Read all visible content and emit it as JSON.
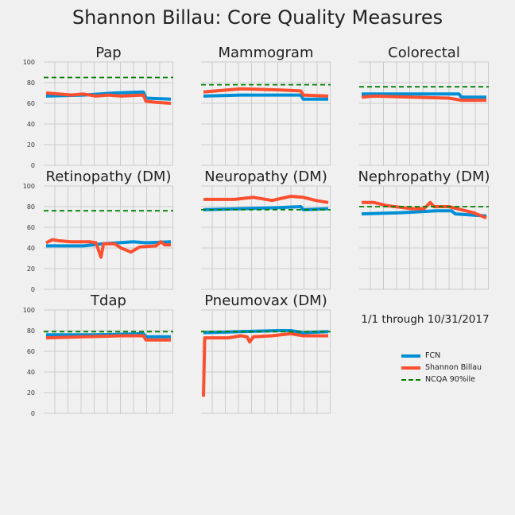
{
  "title": "Shannon Billau: Core Quality Measures",
  "note": "1/1 through 10/31/2017",
  "colors": {
    "fcn": "#008fd5",
    "provider": "#fc4f30",
    "benchmark": "#008000"
  },
  "legend": [
    {
      "label": "FCN",
      "color": "#008fd5",
      "style": "solid"
    },
    {
      "label": "Shannon Billau",
      "color": "#fc4f30",
      "style": "solid"
    },
    {
      "label": "NCQA 90%ile",
      "color": "#008000",
      "style": "dashed"
    }
  ],
  "chart_data": [
    {
      "type": "line",
      "title": "Pap",
      "ylim": [
        0,
        100
      ],
      "yticks": [
        "0",
        "20",
        "40",
        "60",
        "80",
        "100"
      ],
      "grid": true,
      "benchmark": 85,
      "series": [
        {
          "name": "FCN",
          "values": [
            [
              0,
              67
            ],
            [
              0.3,
              68
            ],
            [
              0.55,
              70
            ],
            [
              0.78,
              71
            ],
            [
              0.8,
              65
            ],
            [
              1,
              64
            ]
          ]
        },
        {
          "name": "Shannon Billau",
          "values": [
            [
              0,
              70
            ],
            [
              0.1,
              69
            ],
            [
              0.2,
              68
            ],
            [
              0.3,
              69
            ],
            [
              0.4,
              67
            ],
            [
              0.5,
              68
            ],
            [
              0.6,
              67
            ],
            [
              0.78,
              68
            ],
            [
              0.8,
              62
            ],
            [
              0.88,
              61
            ],
            [
              1,
              60
            ]
          ]
        }
      ]
    },
    {
      "type": "line",
      "title": "Mammogram",
      "ylim": [
        0,
        100
      ],
      "yticks": [],
      "grid": true,
      "benchmark": 78,
      "series": [
        {
          "name": "FCN",
          "values": [
            [
              0,
              67
            ],
            [
              0.3,
              68
            ],
            [
              0.78,
              68
            ],
            [
              0.8,
              64
            ],
            [
              1,
              64
            ]
          ]
        },
        {
          "name": "Shannon Billau",
          "values": [
            [
              0,
              71
            ],
            [
              0.1,
              72
            ],
            [
              0.3,
              74
            ],
            [
              0.6,
              73
            ],
            [
              0.78,
              72
            ],
            [
              0.8,
              68
            ],
            [
              1,
              67
            ]
          ]
        }
      ]
    },
    {
      "type": "line",
      "title": "Colorectal",
      "ylim": [
        0,
        100
      ],
      "yticks": [],
      "grid": true,
      "benchmark": 76,
      "series": [
        {
          "name": "FCN",
          "values": [
            [
              0,
              69
            ],
            [
              0.5,
              69
            ],
            [
              0.78,
              69
            ],
            [
              0.8,
              66
            ],
            [
              1,
              66
            ]
          ]
        },
        {
          "name": "Shannon Billau",
          "values": [
            [
              0,
              66
            ],
            [
              0.1,
              67
            ],
            [
              0.4,
              66
            ],
            [
              0.7,
              65
            ],
            [
              0.8,
              63
            ],
            [
              1,
              63
            ]
          ]
        }
      ]
    },
    {
      "type": "line",
      "title": "Retinopathy (DM)",
      "ylim": [
        0,
        100
      ],
      "yticks": [
        "0",
        "20",
        "40",
        "60",
        "80",
        "100"
      ],
      "grid": true,
      "benchmark": 76,
      "series": [
        {
          "name": "FCN",
          "values": [
            [
              0,
              42
            ],
            [
              0.3,
              42
            ],
            [
              0.45,
              44
            ],
            [
              0.7,
              46
            ],
            [
              0.8,
              45
            ],
            [
              1,
              46
            ]
          ]
        },
        {
          "name": "Shannon Billau",
          "values": [
            [
              0,
              45
            ],
            [
              0.05,
              48
            ],
            [
              0.1,
              47
            ],
            [
              0.2,
              46
            ],
            [
              0.35,
              46
            ],
            [
              0.4,
              45
            ],
            [
              0.42,
              38
            ],
            [
              0.44,
              31
            ],
            [
              0.46,
              44
            ],
            [
              0.55,
              44
            ],
            [
              0.6,
              40
            ],
            [
              0.68,
              36
            ],
            [
              0.75,
              41
            ],
            [
              0.88,
              42
            ],
            [
              0.92,
              46
            ],
            [
              0.95,
              43
            ],
            [
              1,
              43
            ]
          ]
        }
      ]
    },
    {
      "type": "line",
      "title": "Neuropathy (DM)",
      "ylim": [
        0,
        100
      ],
      "yticks": [],
      "grid": true,
      "benchmark": 77,
      "series": [
        {
          "name": "FCN",
          "values": [
            [
              0,
              77
            ],
            [
              0.3,
              78
            ],
            [
              0.6,
              79
            ],
            [
              0.78,
              80
            ],
            [
              0.8,
              77
            ],
            [
              1,
              78
            ]
          ]
        },
        {
          "name": "Shannon Billau",
          "values": [
            [
              0,
              87
            ],
            [
              0.25,
              87
            ],
            [
              0.4,
              89
            ],
            [
              0.55,
              86
            ],
            [
              0.7,
              90
            ],
            [
              0.8,
              89
            ],
            [
              0.9,
              86
            ],
            [
              1,
              84
            ]
          ]
        }
      ]
    },
    {
      "type": "line",
      "title": "Nephropathy (DM)",
      "ylim": [
        0,
        100
      ],
      "yticks": [],
      "grid": true,
      "benchmark": 80,
      "series": [
        {
          "name": "FCN",
          "values": [
            [
              0,
              73
            ],
            [
              0.3,
              74
            ],
            [
              0.6,
              76
            ],
            [
              0.72,
              76
            ],
            [
              0.75,
              73
            ],
            [
              1,
              71
            ]
          ]
        },
        {
          "name": "Shannon Billau",
          "values": [
            [
              0,
              84
            ],
            [
              0.1,
              84
            ],
            [
              0.2,
              81
            ],
            [
              0.4,
              78
            ],
            [
              0.5,
              78
            ],
            [
              0.55,
              84
            ],
            [
              0.58,
              80
            ],
            [
              0.7,
              80
            ],
            [
              0.8,
              77
            ],
            [
              0.9,
              74
            ],
            [
              1,
              69
            ]
          ]
        }
      ]
    },
    {
      "type": "line",
      "title": "Tdap",
      "ylim": [
        0,
        100
      ],
      "yticks": [
        "0",
        "20",
        "40",
        "60",
        "80",
        "100"
      ],
      "grid": true,
      "benchmark": 79,
      "series": [
        {
          "name": "FCN",
          "values": [
            [
              0,
              76
            ],
            [
              0.4,
              76
            ],
            [
              0.78,
              77
            ],
            [
              0.8,
              74
            ],
            [
              1,
              74
            ]
          ]
        },
        {
          "name": "Shannon Billau",
          "values": [
            [
              0,
              73
            ],
            [
              0.3,
              74
            ],
            [
              0.6,
              75
            ],
            [
              0.78,
              75
            ],
            [
              0.8,
              71
            ],
            [
              1,
              71
            ]
          ]
        }
      ]
    },
    {
      "type": "line",
      "title": "Pneumovax (DM)",
      "ylim": [
        0,
        100
      ],
      "yticks": [],
      "grid": true,
      "benchmark": 79,
      "series": [
        {
          "name": "FCN",
          "values": [
            [
              0,
              78
            ],
            [
              0.3,
              79
            ],
            [
              0.6,
              80
            ],
            [
              0.7,
              80
            ],
            [
              0.8,
              78
            ],
            [
              1,
              79
            ]
          ]
        },
        {
          "name": "Shannon Billau",
          "values": [
            [
              0,
              16
            ],
            [
              0.01,
              73
            ],
            [
              0.2,
              73
            ],
            [
              0.3,
              75
            ],
            [
              0.35,
              74
            ],
            [
              0.37,
              69
            ],
            [
              0.4,
              74
            ],
            [
              0.55,
              75
            ],
            [
              0.7,
              77
            ],
            [
              0.8,
              75
            ],
            [
              1,
              75
            ]
          ]
        }
      ]
    }
  ]
}
